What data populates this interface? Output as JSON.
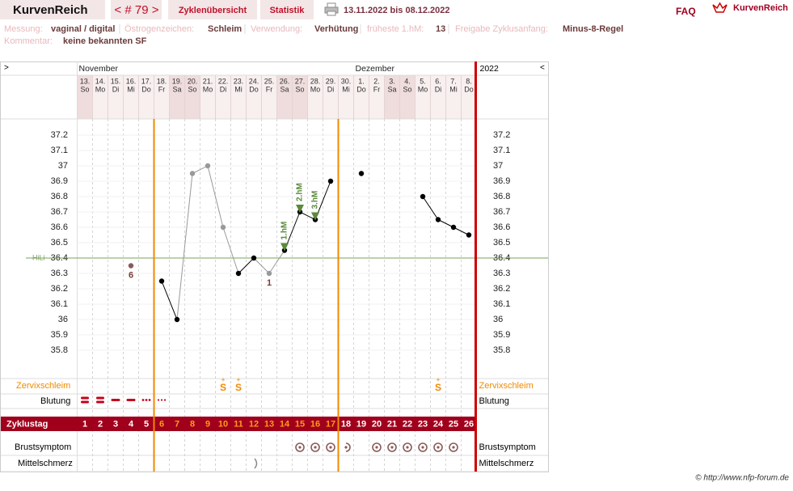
{
  "header": {
    "logo": "KurvenReich",
    "cycle": "< # 79 >",
    "tabs": [
      "Zyklenübersicht",
      "Statistik"
    ],
    "date_range": "13.11.2022 bis 08.12.2022",
    "faq": "FAQ",
    "brand": "KurvenReich"
  },
  "info": {
    "rows": [
      [
        {
          "label": "Messung:",
          "value": "vaginal / digital"
        },
        {
          "label": "Östrogenzeichen:",
          "value": "Schleim"
        },
        {
          "label": "Verwendung:",
          "value": "Verhütung"
        },
        {
          "label": "früheste 1.hM:",
          "value": "13"
        },
        {
          "label": "Freigabe Zyklusanfang:",
          "value": "Minus-8-Regel"
        }
      ],
      [
        {
          "label": "Kommentar:",
          "value": "keine bekannten SF"
        }
      ]
    ]
  },
  "chart_data": {
    "type": "line",
    "nav_left": ">",
    "nav_right": "<",
    "year": "2022",
    "months": [
      "November",
      null,
      null,
      null,
      null,
      null,
      null,
      null,
      null,
      null,
      null,
      null,
      null,
      null,
      null,
      null,
      null,
      null,
      "Dezember",
      null,
      null,
      null,
      null,
      null,
      null,
      null
    ],
    "categories": [
      "13.",
      "14.",
      "15.",
      "16.",
      "17.",
      "18.",
      "19.",
      "20.",
      "21.",
      "22.",
      "23.",
      "24.",
      "25.",
      "26.",
      "27.",
      "28.",
      "29.",
      "30.",
      "1.",
      "2.",
      "3.",
      "4.",
      "5.",
      "6.",
      "7.",
      "8."
    ],
    "weekdays": [
      "So",
      "Mo",
      "Di",
      "Mi",
      "Do",
      "Fr",
      "Sa",
      "So",
      "Mo",
      "Di",
      "Mi",
      "Do",
      "Fr",
      "Sa",
      "So",
      "Mo",
      "Di",
      "Mi",
      "Do",
      "Fr",
      "Sa",
      "So",
      "Mo",
      "Di",
      "Mi",
      "Do"
    ],
    "weekend_color": "#efdcdc",
    "ylim": [
      35.6,
      37.3
    ],
    "yticks": [
      35.8,
      35.9,
      36,
      36.1,
      36.2,
      36.3,
      36.4,
      36.5,
      36.6,
      36.7,
      36.8,
      36.9,
      37,
      37.1,
      37.2
    ],
    "series": [
      {
        "color": "#000000",
        "muted_color": "#999999",
        "values": [
          null,
          null,
          null,
          36.35,
          null,
          36.25,
          36.0,
          36.95,
          37.0,
          36.6,
          36.3,
          36.4,
          36.3,
          36.45,
          36.7,
          36.65,
          36.9,
          null,
          36.95,
          null,
          null,
          null,
          36.8,
          36.65,
          36.6,
          36.55
        ],
        "point_colors": [
          null,
          null,
          null,
          "#8a5a5a",
          null,
          "#000000",
          "#000000",
          "#999999",
          "#999999",
          "#999999",
          "#000000",
          "#000000",
          "#999999",
          "#000000",
          "#000000",
          "#000000",
          "#000000",
          null,
          "#000000",
          null,
          null,
          null,
          "#000000",
          "#000000",
          "#000000",
          "#000000"
        ],
        "point_labels": [
          null,
          null,
          null,
          "6",
          null,
          null,
          null,
          null,
          null,
          null,
          null,
          null,
          "1",
          null,
          null,
          null,
          null,
          null,
          null,
          null,
          null,
          null,
          null,
          null,
          null,
          null
        ],
        "marker_labels": [
          null,
          null,
          null,
          null,
          null,
          null,
          null,
          null,
          null,
          null,
          null,
          null,
          null,
          "1.hM",
          "2.hM",
          "3.hM",
          null,
          null,
          null,
          null,
          null,
          null,
          null,
          null,
          null,
          null
        ],
        "marker_color": "#5a8a3a"
      }
    ],
    "hili": {
      "label": "HiLi",
      "value": 36.4,
      "color": "#7aa35a"
    },
    "separators_after_day": [
      5,
      17
    ],
    "separator_color": "#f08a00",
    "cycle_day_label": "Zyklustag",
    "cycle_days": [
      1,
      2,
      3,
      4,
      5,
      6,
      7,
      8,
      9,
      10,
      11,
      12,
      13,
      14,
      15,
      16,
      17,
      18,
      19,
      20,
      21,
      22,
      23,
      24,
      25,
      26
    ],
    "zervixschleim": {
      "label": "Zervixschleim",
      "values": [
        null,
        null,
        null,
        null,
        null,
        null,
        null,
        null,
        null,
        "S",
        "S",
        null,
        null,
        null,
        null,
        null,
        null,
        null,
        null,
        null,
        null,
        null,
        null,
        "S",
        null,
        null
      ]
    },
    "blutung": {
      "label": "Blutung",
      "values": [
        4,
        4,
        3,
        3,
        2,
        1,
        null,
        null,
        null,
        null,
        null,
        null,
        null,
        null,
        null,
        null,
        null,
        null,
        null,
        null,
        null,
        null,
        null,
        null,
        null,
        null
      ]
    },
    "brustsymptom": {
      "label": "Brustsymptom",
      "values": [
        null,
        null,
        null,
        null,
        null,
        null,
        null,
        null,
        null,
        null,
        null,
        null,
        null,
        null,
        1,
        1,
        1,
        0.5,
        null,
        1,
        1,
        1,
        1,
        1,
        1,
        null
      ]
    },
    "mittelschmerz": {
      "label": "Mittelschmerz",
      "values": [
        null,
        null,
        null,
        null,
        null,
        null,
        null,
        null,
        null,
        null,
        null,
        1,
        null,
        null,
        null,
        null,
        null,
        null,
        null,
        null,
        null,
        null,
        null,
        null,
        null,
        null
      ]
    }
  },
  "footer": "© http://www.nfp-forum.de"
}
